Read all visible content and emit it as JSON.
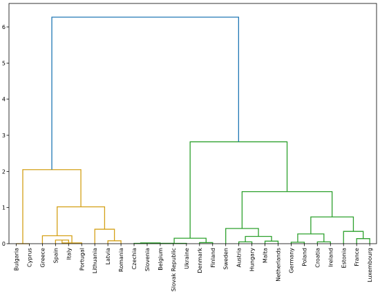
{
  "chart_data": {
    "type": "dendrogram",
    "title": "",
    "xlabel": "",
    "ylabel": "",
    "ylim": [
      0,
      6.65
    ],
    "yticks": [
      0,
      1,
      2,
      3,
      4,
      5,
      6
    ],
    "grid": false,
    "leaves": [
      "Bulgaria",
      "Cyprus",
      "Greece",
      "Spain",
      "Italy",
      "Portugal",
      "Lithuania",
      "Latvia",
      "Romania",
      "Czechia",
      "Slovenia",
      "Belgium",
      "Slovak Republic",
      "Ukraine",
      "Denmark",
      "Finland",
      "Sweden",
      "Austria",
      "Hungary",
      "Malta",
      "Netherlands",
      "Germany",
      "Poland",
      "Croatia",
      "Ireland",
      "Estonia",
      "France",
      "Luxembourg"
    ],
    "colors": {
      "cluster1": "#d4a017",
      "cluster2": "#2ca02c",
      "root": "#1f77b4"
    },
    "links": [
      {
        "left": 3,
        "right": 4,
        "height": 0.1,
        "color": "cluster1"
      },
      {
        "left": 28,
        "right": 5,
        "height": 0.02,
        "color": "cluster1"
      },
      {
        "left": 2,
        "right": 29,
        "height": 0.22,
        "color": "cluster1"
      },
      {
        "left": 0,
        "right": 1,
        "height": 0.0,
        "color": "cluster1"
      },
      {
        "left": 7,
        "right": 8,
        "height": 0.08,
        "color": "cluster1"
      },
      {
        "left": 6,
        "right": 32,
        "height": 0.4,
        "color": "cluster1"
      },
      {
        "left": 30,
        "right": 33,
        "height": 1.02,
        "color": "cluster1"
      },
      {
        "left": 31,
        "right": 34,
        "height": 2.05,
        "color": "cluster1"
      },
      {
        "left": 9,
        "right": 10,
        "height": 0.01,
        "color": "cluster2"
      },
      {
        "left": 36,
        "right": 11,
        "height": 0.02,
        "color": "cluster2"
      },
      {
        "left": 37,
        "right": 12,
        "height": 0.01,
        "color": "cluster2"
      },
      {
        "left": 14,
        "right": 15,
        "height": 0.03,
        "color": "cluster2"
      },
      {
        "left": 38,
        "right": 13,
        "height": 0.01,
        "color": "cluster2"
      },
      {
        "left": 40,
        "right": 39,
        "height": 0.15,
        "color": "cluster2"
      },
      {
        "left": 17,
        "right": 18,
        "height": 0.05,
        "color": "cluster2"
      },
      {
        "left": 19,
        "right": 20,
        "height": 0.07,
        "color": "cluster2"
      },
      {
        "left": 42,
        "right": 43,
        "height": 0.2,
        "color": "cluster2"
      },
      {
        "left": 16,
        "right": 44,
        "height": 0.42,
        "color": "cluster2"
      },
      {
        "left": 21,
        "right": 22,
        "height": 0.04,
        "color": "cluster2"
      },
      {
        "left": 23,
        "right": 24,
        "height": 0.05,
        "color": "cluster2"
      },
      {
        "left": 46,
        "right": 47,
        "height": 0.27,
        "color": "cluster2"
      },
      {
        "left": 26,
        "right": 27,
        "height": 0.14,
        "color": "cluster2"
      },
      {
        "left": 25,
        "right": 49,
        "height": 0.34,
        "color": "cluster2"
      },
      {
        "left": 48,
        "right": 50,
        "height": 0.74,
        "color": "cluster2"
      },
      {
        "left": 45,
        "right": 51,
        "height": 1.44,
        "color": "cluster2"
      },
      {
        "left": 41,
        "right": 52,
        "height": 2.82,
        "color": "cluster2"
      },
      {
        "left": 35,
        "right": 53,
        "height": 6.27,
        "color": "root"
      }
    ]
  }
}
